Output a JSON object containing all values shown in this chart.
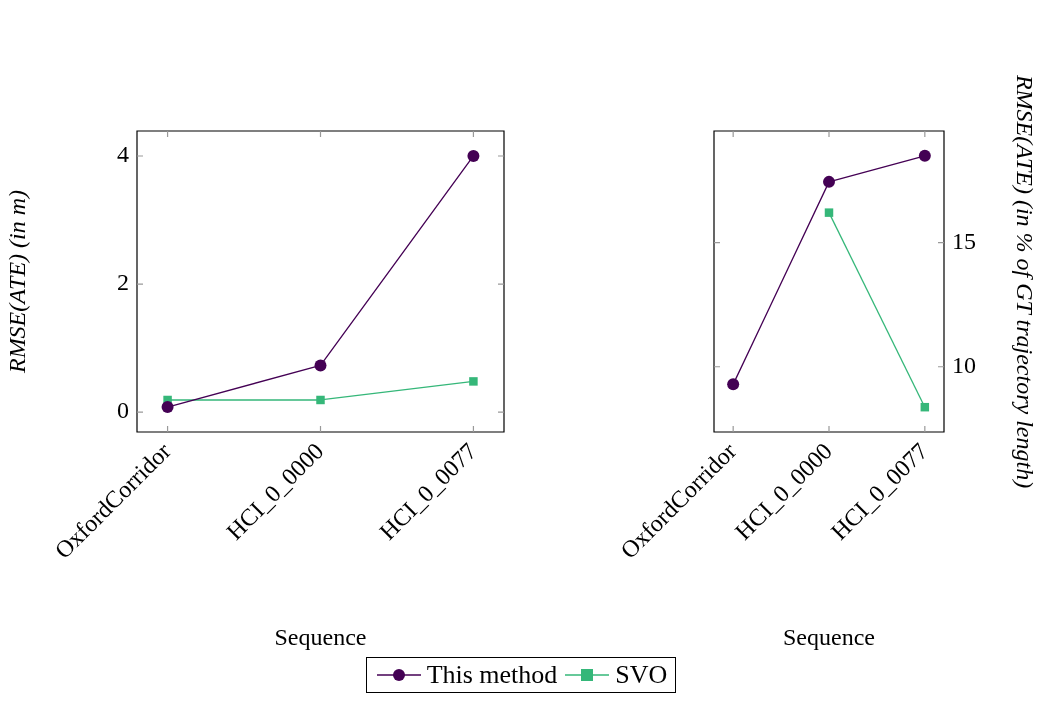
{
  "chart_data": [
    {
      "type": "line",
      "xlabel": "Sequence",
      "ylabel": "RMSE(ATE) (in m)",
      "categories": [
        "OxfordCorridor",
        "HCI_0_0000",
        "HCI_0_0077"
      ],
      "ylim": [
        -0.31,
        4.39
      ],
      "yticks": [
        0,
        2,
        4
      ],
      "legend": "bottom",
      "grid": false,
      "series": [
        {
          "name": "This method",
          "color": "#440154",
          "marker": "circle",
          "values": [
            0.08,
            0.73,
            4.0
          ]
        },
        {
          "name": "SVO",
          "color": "#35b779",
          "marker": "square",
          "values": [
            0.19,
            0.19,
            0.48
          ]
        }
      ]
    },
    {
      "type": "line",
      "xlabel": "Sequence",
      "y2label": "RMSE(ATE) (in % of GT trajectory length)",
      "categories": [
        "OxfordCorridor",
        "HCI_0_0000",
        "HCI_0_0077"
      ],
      "y2lim": [
        7.37,
        19.5
      ],
      "y2ticks": [
        10,
        15
      ],
      "grid": false,
      "series": [
        {
          "color": "#440154",
          "marker": "circle",
          "axis": "y2",
          "values": [
            9.29,
            17.45,
            18.5
          ]
        },
        {
          "color": "#35b779",
          "marker": "square",
          "axis": "y2",
          "values": [
            null,
            16.21,
            8.37
          ]
        }
      ]
    }
  ]
}
